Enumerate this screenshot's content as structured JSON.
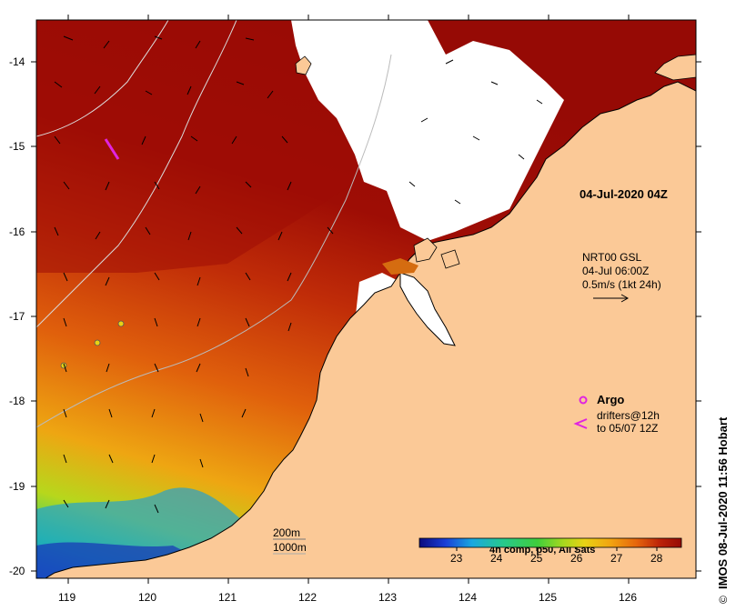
{
  "map": {
    "timestamp": "04-Jul-2020 04Z",
    "current_product": "NRT00 GSL",
    "current_time": "04-Jul 06:00Z",
    "current_scale": "0.5m/s (1kt 24h)",
    "argo_label": "Argo",
    "drifters_line1": "drifters@12h",
    "drifters_line2": "to 05/07 12Z",
    "depth_200": "200m",
    "depth_1000": "1000m",
    "credit": "IMOS 08-Jul-2020 11:56 Hobart",
    "copyright_symbol": "©",
    "colorbar_title": "4h comp, p50, All Sats",
    "colorbar_ticks": [
      "23",
      "24",
      "25",
      "26",
      "27",
      "28"
    ],
    "lat_labels": [
      "-14",
      "-15",
      "-16",
      "-17",
      "-18",
      "-19",
      "-20"
    ],
    "lon_labels": [
      "119",
      "120",
      "121",
      "122",
      "123",
      "124",
      "125",
      "126"
    ],
    "lon_range": [
      118.7,
      126.7
    ],
    "lat_range": [
      -20.1,
      -13.5
    ],
    "colors": {
      "land": "#fbc997",
      "cloud": "#ffffff",
      "warm": "#9e0d05",
      "argo": "#e024e0"
    },
    "colorbar_colors": [
      "#0b0b7e",
      "#1a3fd8",
      "#1aa7e0",
      "#27c98c",
      "#3fce3c",
      "#a8d81e",
      "#e8d214",
      "#f2a410",
      "#e5640c",
      "#bb2208",
      "#960a05"
    ]
  }
}
